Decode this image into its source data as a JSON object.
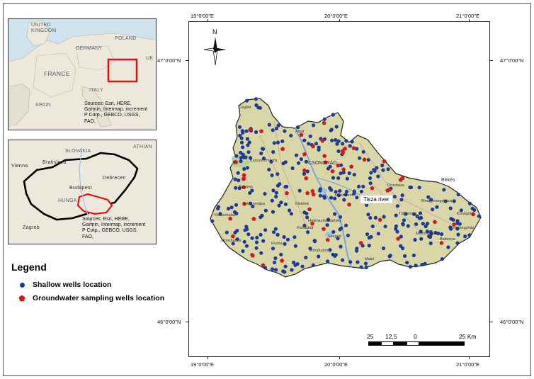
{
  "colors": {
    "region_fill": "#d9d6a8",
    "region_outline": "#222222",
    "shallow_dot": "#1f3a93",
    "sampling_marker": "#d11a1a",
    "river": "#7da6d8",
    "inset_water": "#cfe3ef",
    "inset_land": "#ece8dc",
    "highlight": "#e01010"
  },
  "europe_inset": {
    "labels": [
      "UNITED KINGDOM",
      "POLAND",
      "GERMANY",
      "UK",
      "FRANCE",
      "ITALY",
      "SPAIN"
    ],
    "sources": "Sources: Esri, HERE, Garmin, Intermap, increment P Corp., GEBCO, USGS, FAO,"
  },
  "hungary_inset": {
    "labels": [
      "SLOVAKIA",
      "Bratislava",
      "Vienna",
      "Budapest",
      "Debrecen",
      "HUNGA",
      "Zagreb",
      "ATHIAN"
    ],
    "sources": "Sources: Esri, HERE, Garmin, Intermap, increment P Corp., GEBCO, USGS, FAO,"
  },
  "coordinates": {
    "top_left": "19°0'00\"E",
    "top_mid": "20°0'00\"E",
    "top_right": "21°0'00\"E",
    "bottom_left": "19°0'00\"E",
    "bottom_mid": "20°0'00\"E",
    "bottom_right": "21°0'00\"E",
    "left_upper": "47°0'00\"N",
    "right_upper": "47°0'00\"N",
    "left_lower": "46°0'00\"N",
    "right_lower": "46°0'00\"N"
  },
  "north_label": "N",
  "river_label": "Tisza river",
  "places": [
    {
      "name": "Cegléd",
      "key": "p1"
    },
    {
      "name": "Alpár",
      "key": "p2"
    },
    {
      "name": "CSONGRÁD",
      "key": "p3"
    },
    {
      "name": "Kunszentmiklós",
      "key": "p4"
    },
    {
      "name": "Szarvas",
      "key": "p5"
    },
    {
      "name": "Kiskunmajsa",
      "key": "p6"
    },
    {
      "name": "Mindszent",
      "key": "p7"
    },
    {
      "name": "Kiskunhalas",
      "key": "p8"
    },
    {
      "name": "Hódmezővásárhely",
      "key": "p9"
    },
    {
      "name": "Orosháza",
      "key": "p10"
    },
    {
      "name": "Tótkomlós",
      "key": "p11"
    },
    {
      "name": "Medgyesegyháza",
      "key": "p12"
    },
    {
      "name": "Kunágota",
      "key": "p13"
    },
    {
      "name": "Dombegyház",
      "key": "p14"
    },
    {
      "name": "Battonya",
      "key": "p15"
    },
    {
      "name": "Mezőhegyes",
      "key": "p16"
    },
    {
      "name": "Makó",
      "key": "p17"
    },
    {
      "name": "Szeged",
      "key": "p18"
    },
    {
      "name": "Kistelek",
      "key": "p19"
    },
    {
      "name": "Forráskút",
      "key": "p20"
    },
    {
      "name": "Mórahalom",
      "key": "p21"
    },
    {
      "name": "Jánoshalma",
      "key": "p22"
    },
    {
      "name": "Ruzsa",
      "key": "p23"
    },
    {
      "name": "Békés",
      "key": "p24"
    }
  ],
  "legend": {
    "title": "Legend",
    "items": [
      {
        "label": "Shallow wells location",
        "symbol": "circle"
      },
      {
        "label": "Groundwater sampling wells location",
        "symbol": "pentagon"
      }
    ]
  },
  "scale": {
    "labels": [
      "25",
      "12,5",
      "0",
      "25 Km"
    ]
  }
}
